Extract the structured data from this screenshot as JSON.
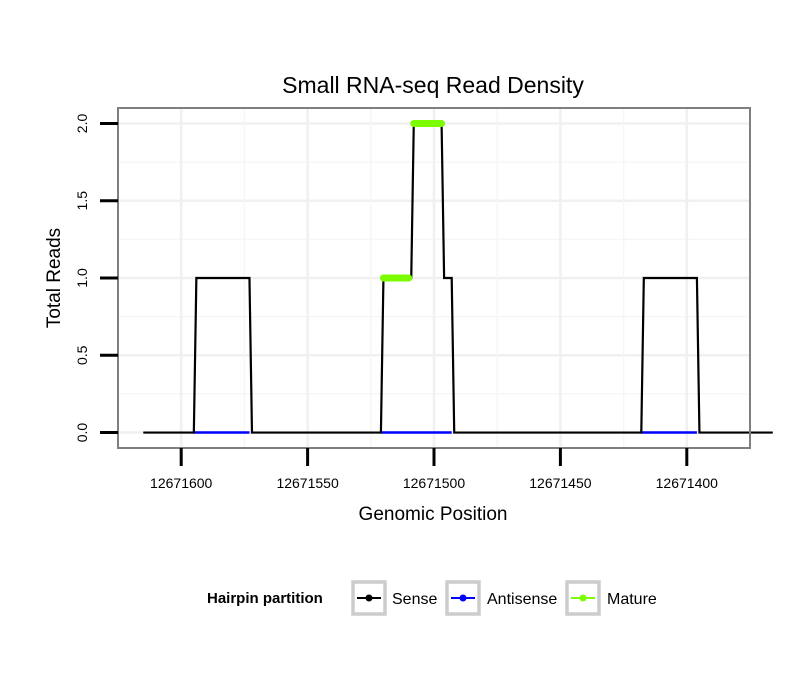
{
  "chart_data": {
    "type": "line",
    "title": "Small RNA-seq Read Density",
    "xlabel": "Genomic Position",
    "ylabel": "Total Reads",
    "xlim": [
      12671625,
      12671375
    ],
    "ylim": [
      -0.1,
      2.1
    ],
    "x_reversed": true,
    "x_ticks": [
      12671600,
      12671550,
      12671500,
      12671450,
      12671400
    ],
    "x_tick_labels": [
      "12671600",
      "12671550",
      "12671500",
      "12671450",
      "12671400"
    ],
    "y_ticks": [
      0.0,
      0.5,
      1.0,
      1.5,
      2.0
    ],
    "y_tick_labels": [
      "0.0",
      "0.5",
      "1.0",
      "1.5",
      "2.0"
    ],
    "grid": true,
    "legend": {
      "title": "Hairpin partition",
      "position": "bottom",
      "entries": [
        "Sense",
        "Antisense",
        "Mature"
      ]
    },
    "series": [
      {
        "name": "Sense",
        "color": "#000000",
        "x": [
          12671615,
          12671595,
          12671594,
          12671573,
          12671572,
          12671521,
          12671520,
          12671509,
          12671508,
          12671497,
          12671496,
          12671493,
          12671492,
          12671418,
          12671417,
          12671396,
          12671395,
          12671366
        ],
        "y": [
          0,
          0,
          1,
          1,
          0,
          0,
          1,
          1,
          2,
          2,
          1,
          1,
          0,
          0,
          1,
          1,
          0,
          0
        ]
      },
      {
        "name": "Antisense",
        "color": "#0000ff",
        "segments": [
          {
            "x": [
              12671595,
              12671573
            ],
            "y": [
              0,
              0
            ]
          },
          {
            "x": [
              12671521,
              12671493
            ],
            "y": [
              0,
              0
            ]
          },
          {
            "x": [
              12671418,
              12671396
            ],
            "y": [
              0,
              0
            ]
          }
        ]
      },
      {
        "name": "Mature",
        "color": "#7cfc00",
        "segments": [
          {
            "x": [
              12671520,
              12671510
            ],
            "y": [
              1,
              1
            ]
          },
          {
            "x": [
              12671508,
              12671497
            ],
            "y": [
              2,
              2
            ]
          }
        ]
      }
    ]
  }
}
